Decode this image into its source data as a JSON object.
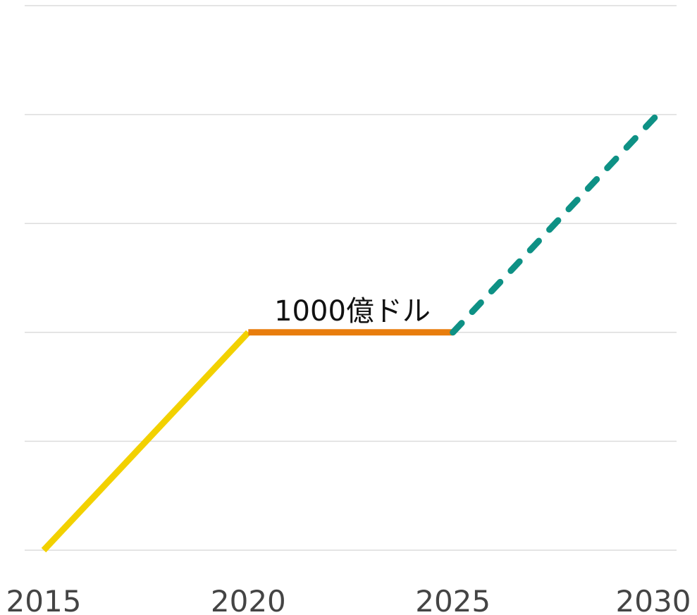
{
  "chart_data": {
    "type": "line",
    "xlim": [
      2015,
      2030
    ],
    "xticks": [
      2015,
      2020,
      2025,
      2030
    ],
    "ylim": [
      0,
      2500
    ],
    "yticks": [
      0,
      500,
      1000,
      1500,
      2000,
      2500
    ],
    "grid": true,
    "series": [
      {
        "color": "#f2d100",
        "x": [
          2015,
          2020
        ],
        "values": [
          0,
          1000
        ],
        "dashed": false
      },
      {
        "color": "#e87d0d",
        "x": [
          2020,
          2025
        ],
        "values": [
          1000,
          1000
        ],
        "dashed": false
      },
      {
        "color": "#0e9185",
        "x": [
          2025,
          2030
        ],
        "values": [
          1000,
          2000
        ],
        "dashed": true
      }
    ],
    "annotations": [
      {
        "text": "1000億ドル"
      }
    ]
  }
}
